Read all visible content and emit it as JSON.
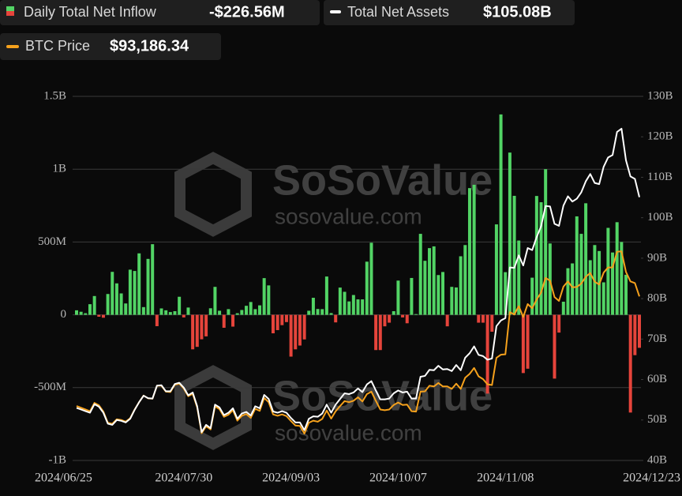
{
  "chart_data": {
    "type": "bar-line",
    "legend_values": [
      "-$226.56M",
      "$105.08B",
      "$93,186.34"
    ],
    "watermark": [
      "SoSoValue",
      "sosovalue.com"
    ],
    "categories": [
      "2024/06/25",
      null,
      null,
      null,
      null,
      null,
      null,
      null,
      null,
      null,
      null,
      null,
      null,
      null,
      null,
      null,
      null,
      null,
      null,
      null,
      null,
      null,
      null,
      null,
      "2024/07/30",
      null,
      null,
      null,
      null,
      null,
      null,
      null,
      null,
      null,
      null,
      null,
      null,
      null,
      null,
      null,
      null,
      null,
      null,
      null,
      null,
      null,
      null,
      null,
      "2024/09/03",
      null,
      null,
      null,
      null,
      null,
      null,
      null,
      null,
      null,
      null,
      null,
      null,
      null,
      null,
      null,
      null,
      null,
      null,
      null,
      null,
      null,
      null,
      null,
      "2024/10/07",
      null,
      null,
      null,
      null,
      null,
      null,
      null,
      null,
      null,
      null,
      null,
      null,
      null,
      null,
      null,
      null,
      null,
      null,
      null,
      null,
      null,
      null,
      null,
      "2024/11/08",
      null,
      null,
      null,
      null,
      null,
      null,
      null,
      null,
      null,
      null,
      null,
      null,
      null,
      null,
      null,
      null,
      null,
      null,
      null,
      null,
      null,
      null,
      null,
      null,
      null,
      null,
      null,
      null,
      null,
      "2024/12/23"
    ],
    "ylim": [
      -1000,
      1500
    ],
    "yticks": [
      {
        "value": -1000,
        "label": "-1B"
      },
      {
        "value": -500,
        "label": "-500M"
      },
      {
        "value": 0,
        "label": "0"
      },
      {
        "value": 500,
        "label": "500M"
      },
      {
        "value": 1000,
        "label": "1B"
      },
      {
        "value": 1500,
        "label": "1.5B"
      }
    ],
    "y2lim": [
      40,
      130
    ],
    "y2ticks": [
      {
        "value": 40,
        "label": "40B"
      },
      {
        "value": 50,
        "label": "50B"
      },
      {
        "value": 60,
        "label": "60B"
      },
      {
        "value": 70,
        "label": "70B"
      },
      {
        "value": 80,
        "label": "80B"
      },
      {
        "value": 90,
        "label": "90B"
      },
      {
        "value": 100,
        "label": "100B"
      },
      {
        "value": 110,
        "label": "110B"
      },
      {
        "value": 120,
        "label": "120B"
      },
      {
        "value": 130,
        "label": "130B"
      }
    ],
    "y3lim": [
      46200,
      150500
    ],
    "grid": true,
    "series": [
      {
        "name": "Daily Total Net Inflow",
        "type": "bar",
        "color": "#52d465",
        "negative_color": "#e6443b",
        "values": [
          31,
          21,
          11,
          73,
          129,
          -13,
          -20,
          143,
          295,
          216,
          147,
          78,
          310,
          301,
          422,
          53,
          384,
          485,
          -78,
          44,
          31,
          19,
          25,
          124,
          -18,
          50,
          -237,
          -220,
          -168,
          -148,
          45,
          192,
          28,
          -89,
          39,
          -81,
          11,
          33,
          62,
          88,
          39,
          65,
          252,
          202,
          -127,
          -105,
          -71,
          -50,
          -287,
          -237,
          -211,
          -169,
          28,
          117,
          40,
          39,
          263,
          12,
          -52,
          187,
          158,
          92,
          136,
          106,
          106,
          365,
          495,
          -242,
          -242,
          -79,
          -54,
          25,
          235,
          -18,
          -58,
          253,
          5,
          556,
          371,
          458,
          470,
          273,
          294,
          -79,
          192,
          188,
          402,
          479,
          870,
          893,
          -54,
          -54,
          -541,
          -116,
          621,
          1376,
          293,
          1114,
          817,
          510,
          -400,
          -370,
          255,
          816,
          773,
          1000,
          490,
          -438,
          -122,
          90,
          320,
          353,
          676,
          556,
          766,
          375,
          479,
          438,
          223,
          597,
          428,
          636,
          500,
          275,
          -671,
          -277,
          -226.56
        ]
      },
      {
        "name": "Total Net Assets",
        "type": "line",
        "axis": "y2",
        "color": "#ffffff",
        "values": [
          53.0,
          52.6,
          52.2,
          51.8,
          53.9,
          53.3,
          51.8,
          49.1,
          48.8,
          50.0,
          49.8,
          49.4,
          50.3,
          52.5,
          54.4,
          56.0,
          55.4,
          55.3,
          58.5,
          58.6,
          57.1,
          57.1,
          58.9,
          59.2,
          58.0,
          56.1,
          56.8,
          53.4,
          47.0,
          48.8,
          48.0,
          53.8,
          53.1,
          51.2,
          51.8,
          52.9,
          50.3,
          51.6,
          52.0,
          51.1,
          53.4,
          52.9,
          56.2,
          55.2,
          52.1,
          51.8,
          52.2,
          51.8,
          50.5,
          49.4,
          49.4,
          47.5,
          50.3,
          50.9,
          50.8,
          51.6,
          53.8,
          51.8,
          53.8,
          55.2,
          56.6,
          56.4,
          56.8,
          57.8,
          56.9,
          58.8,
          59.6,
          57.3,
          55.1,
          55.1,
          55.3,
          56.6,
          57.3,
          56.8,
          57.0,
          55.3,
          55.3,
          60.7,
          60.9,
          62.4,
          62.3,
          63.4,
          62.5,
          62.6,
          62.1,
          63.6,
          62.3,
          65.4,
          66.5,
          68.2,
          66.1,
          65.8,
          64.9,
          65.2,
          73.2,
          74.6,
          75.2,
          87.7,
          87.6,
          90.7,
          88.2,
          92.5,
          92.0,
          95.2,
          97.9,
          102.9,
          102.8,
          98.5,
          98.0,
          103.0,
          105.3,
          104.0,
          104.7,
          106.3,
          109.0,
          110.8,
          108.6,
          108.3,
          112.6,
          114.9,
          115.5,
          121.2,
          122.0,
          114.2,
          110.2,
          109.6,
          105.08
        ]
      },
      {
        "name": "BTC Price",
        "type": "line",
        "axis": "y3",
        "color": "#f5a11c",
        "values": [
          61800,
          61300,
          60800,
          60300,
          62700,
          62000,
          60200,
          57000,
          56700,
          58000,
          57800,
          57300,
          58300,
          60800,
          62900,
          64800,
          64000,
          63900,
          67600,
          67600,
          65900,
          65800,
          67900,
          68200,
          66800,
          64600,
          65300,
          61400,
          54000,
          56000,
          55100,
          61700,
          60900,
          58700,
          59300,
          60600,
          57600,
          59000,
          59500,
          58400,
          61000,
          60400,
          64100,
          62900,
          59400,
          59000,
          59400,
          58900,
          57500,
          56200,
          56100,
          53900,
          57000,
          57600,
          57300,
          58100,
          60500,
          58200,
          60300,
          61800,
          63200,
          62900,
          63300,
          64300,
          63100,
          65200,
          65900,
          63300,
          60800,
          60600,
          60800,
          62100,
          62800,
          62100,
          62200,
          60300,
          60200,
          65900,
          66000,
          67600,
          67400,
          68400,
          67400,
          67400,
          66700,
          68200,
          66700,
          69900,
          71000,
          72700,
          70300,
          69500,
          68000,
          67800,
          75600,
          76500,
          76600,
          88700,
          88000,
          90400,
          87300,
          91000,
          89800,
          92300,
          94300,
          98500,
          97700,
          93000,
          91900,
          96000,
          97500,
          95800,
          95900,
          96900,
          98800,
          99900,
          97400,
          96600,
          100000,
          101500,
          101500,
          106000,
          106100,
          100200,
          97500,
          97000,
          93186.34
        ]
      }
    ]
  }
}
